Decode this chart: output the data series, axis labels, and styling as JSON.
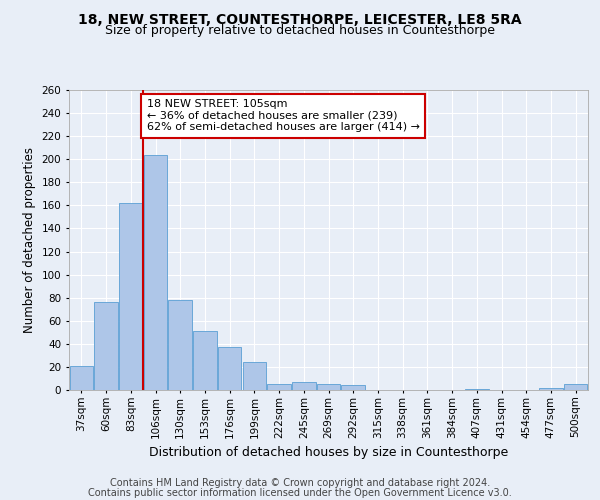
{
  "title": "18, NEW STREET, COUNTESTHORPE, LEICESTER, LE8 5RA",
  "subtitle": "Size of property relative to detached houses in Countesthorpe",
  "xlabel": "Distribution of detached houses by size in Countesthorpe",
  "ylabel": "Number of detached properties",
  "categories": [
    "37sqm",
    "60sqm",
    "83sqm",
    "106sqm",
    "130sqm",
    "153sqm",
    "176sqm",
    "199sqm",
    "222sqm",
    "245sqm",
    "269sqm",
    "292sqm",
    "315sqm",
    "338sqm",
    "361sqm",
    "384sqm",
    "407sqm",
    "431sqm",
    "454sqm",
    "477sqm",
    "500sqm"
  ],
  "values": [
    21,
    76,
    162,
    204,
    78,
    51,
    37,
    24,
    5,
    7,
    5,
    4,
    0,
    0,
    0,
    0,
    1,
    0,
    0,
    2,
    5
  ],
  "bar_color": "#aec6e8",
  "bar_edge_color": "#5a9fd4",
  "vline_color": "#cc0000",
  "annotation_text": "18 NEW STREET: 105sqm\n← 36% of detached houses are smaller (239)\n62% of semi-detached houses are larger (414) →",
  "annotation_box_color": "#ffffff",
  "annotation_box_edge_color": "#cc0000",
  "ylim": [
    0,
    260
  ],
  "yticks": [
    0,
    20,
    40,
    60,
    80,
    100,
    120,
    140,
    160,
    180,
    200,
    220,
    240,
    260
  ],
  "footer_line1": "Contains HM Land Registry data © Crown copyright and database right 2024.",
  "footer_line2": "Contains public sector information licensed under the Open Government Licence v3.0.",
  "title_fontsize": 10,
  "subtitle_fontsize": 9,
  "xlabel_fontsize": 9,
  "ylabel_fontsize": 8.5,
  "tick_fontsize": 7.5,
  "footer_fontsize": 7,
  "background_color": "#e8eef7",
  "plot_bg_color": "#e8eef7",
  "grid_color": "#ffffff"
}
